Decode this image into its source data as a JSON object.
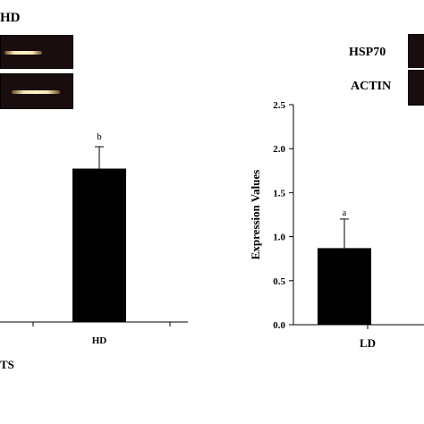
{
  "left_panel": {
    "gel_header": "HD",
    "bar_letter": "b",
    "category": "HD",
    "axis_title_fragment": "TS"
  },
  "right_panel": {
    "gel_labels": [
      "HSP70",
      "ACTIN"
    ]
  },
  "chart_data": [
    {
      "type": "bar",
      "categories": [
        "HD"
      ],
      "values": [
        1.75
      ],
      "error": [
        0.25
      ],
      "significance_letters": [
        "b"
      ],
      "ylim": [
        0,
        2.5
      ],
      "xlabel": "TS",
      "ylabel": ""
    },
    {
      "type": "bar",
      "categories": [
        "LD"
      ],
      "values": [
        0.87
      ],
      "error": [
        0.33
      ],
      "significance_letters": [
        "a"
      ],
      "yticks": [
        "0.0",
        "0.5",
        "1.0",
        "1.5",
        "2.0",
        "2.5"
      ],
      "ylim": [
        0,
        2.5
      ],
      "ylabel": "Expression Values",
      "xlabel": ""
    }
  ],
  "colors": {
    "bar": "#000000",
    "gel_bg": "#1a0d0d",
    "band": "#f4e6b4"
  }
}
